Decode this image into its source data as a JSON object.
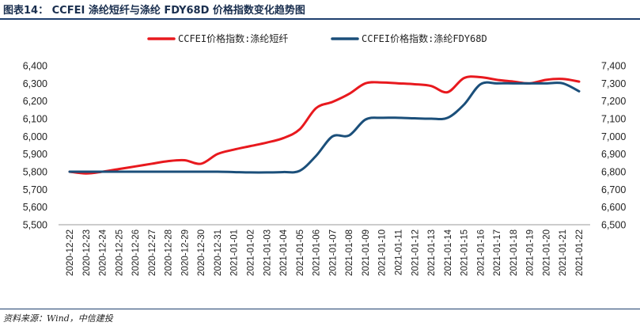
{
  "figure": {
    "title": "图表14：   CCFEI 涤纶短纤与涤纶 FDY68D 价格指数变化趋势图",
    "source": "资料来源：Wind，中信建投"
  },
  "chart_data": {
    "type": "line",
    "categories": [
      "2020-12-22",
      "2020-12-23",
      "2020-12-24",
      "2020-12-25",
      "2020-12-26",
      "2020-12-27",
      "2020-12-28",
      "2020-12-29",
      "2020-12-30",
      "2020-12-31",
      "2021-01-01",
      "2021-01-02",
      "2021-01-03",
      "2021-01-04",
      "2021-01-05",
      "2021-01-06",
      "2021-01-07",
      "2021-01-08",
      "2021-01-09",
      "2021-01-10",
      "2021-01-11",
      "2021-01-12",
      "2021-01-13",
      "2021-01-14",
      "2021-01-15",
      "2021-01-16",
      "2021-01-17",
      "2021-01-18",
      "2021-01-19",
      "2021-01-20",
      "2021-01-21",
      "2021-01-22"
    ],
    "y_left": {
      "min": 5500,
      "max": 6400,
      "ticks": [
        "5,500",
        "5,600",
        "5,700",
        "5,800",
        "5,900",
        "6,000",
        "6,100",
        "6,200",
        "6,300",
        "6,400"
      ]
    },
    "y_right": {
      "min": 6500,
      "max": 7400,
      "ticks": [
        "6,500",
        "6,600",
        "6,700",
        "6,800",
        "6,900",
        "7,000",
        "7,100",
        "7,200",
        "7,300",
        "7,400"
      ]
    },
    "series": [
      {
        "name": "CCFEI价格指数:涤纶短纤",
        "axis": "left",
        "color": "#e8191e",
        "values": [
          5800,
          5790,
          5800,
          5815,
          5830,
          5845,
          5860,
          5865,
          5845,
          5900,
          5925,
          5945,
          5965,
          5990,
          6040,
          6160,
          6195,
          6240,
          6300,
          6305,
          6300,
          6295,
          6285,
          6250,
          6330,
          6335,
          6320,
          6310,
          6300,
          6320,
          6325,
          6310
        ]
      },
      {
        "name": "CCFEI价格指数:涤纶FDY68D",
        "axis": "right",
        "color": "#1b4f7a",
        "values": [
          6800,
          6800,
          6800,
          6800,
          6800,
          6800,
          6800,
          6800,
          6800,
          6800,
          6798,
          6796,
          6796,
          6798,
          6805,
          6890,
          7000,
          7005,
          7095,
          7105,
          7105,
          7102,
          7100,
          7105,
          7180,
          7295,
          7300,
          7300,
          7300,
          7300,
          7300,
          7255
        ]
      }
    ],
    "legend_position": "top-center",
    "grid": false
  }
}
